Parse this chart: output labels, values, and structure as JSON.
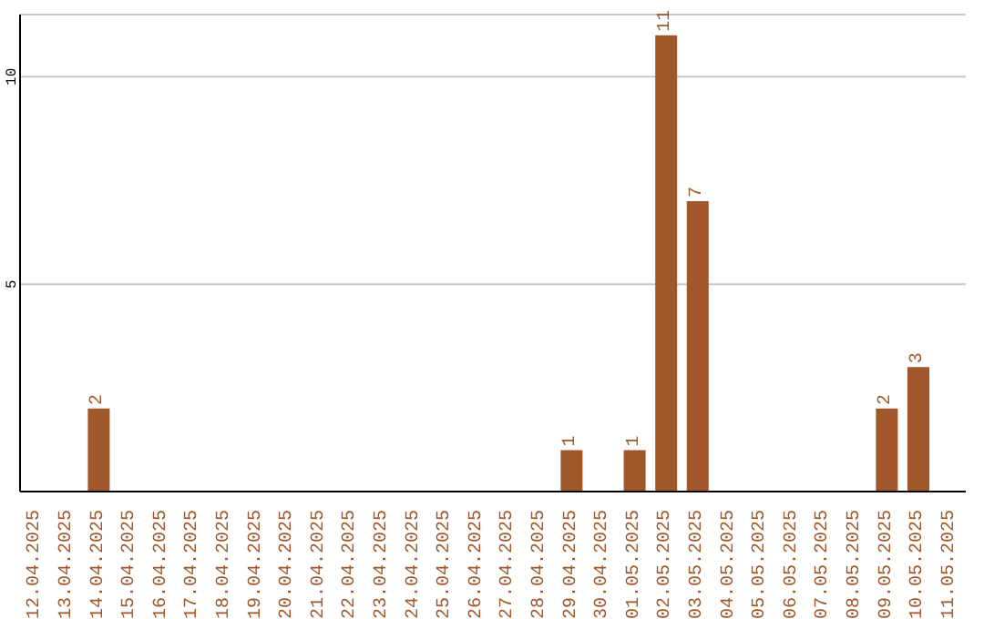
{
  "chart_data": {
    "type": "bar",
    "categories": [
      "12.04.2025",
      "13.04.2025",
      "14.04.2025",
      "15.04.2025",
      "16.04.2025",
      "17.04.2025",
      "18.04.2025",
      "19.04.2025",
      "20.04.2025",
      "21.04.2025",
      "22.04.2025",
      "23.04.2025",
      "24.04.2025",
      "25.04.2025",
      "26.04.2025",
      "27.04.2025",
      "28.04.2025",
      "29.04.2025",
      "30.04.2025",
      "01.05.2025",
      "02.05.2025",
      "03.05.2025",
      "04.05.2025",
      "05.05.2025",
      "06.05.2025",
      "07.05.2025",
      "08.05.2025",
      "09.05.2025",
      "10.05.2025",
      "11.05.2025"
    ],
    "values": [
      0,
      0,
      2,
      0,
      0,
      0,
      0,
      0,
      0,
      0,
      0,
      0,
      0,
      0,
      0,
      0,
      0,
      1,
      0,
      1,
      11,
      7,
      0,
      0,
      0,
      0,
      0,
      2,
      3,
      0
    ],
    "value_labels": [
      null,
      null,
      "2",
      null,
      null,
      null,
      null,
      null,
      null,
      null,
      null,
      null,
      null,
      null,
      null,
      null,
      null,
      "1",
      null,
      "1",
      "11",
      "7",
      null,
      null,
      null,
      null,
      null,
      "2",
      "3",
      null
    ],
    "color": "#a0572a",
    "ylim": [
      0,
      11.5
    ],
    "yticks": [
      5,
      10
    ],
    "grid": "y"
  }
}
